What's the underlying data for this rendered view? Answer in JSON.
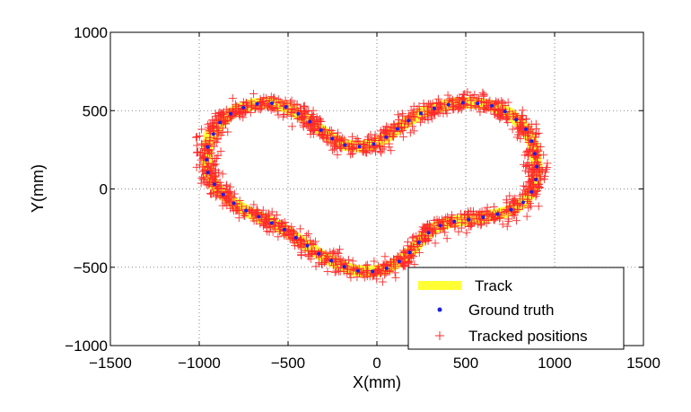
{
  "chart_data": {
    "type": "scatter",
    "title": "",
    "xlabel": "X(mm)",
    "ylabel": "Y(mm)",
    "xlim": [
      -1500,
      1500
    ],
    "ylim": [
      -1000,
      1000
    ],
    "xticks": [
      -1500,
      -1000,
      -500,
      0,
      500,
      1000,
      1500
    ],
    "yticks": [
      -1000,
      -500,
      0,
      500,
      1000
    ],
    "xtick_labels": [
      "−1500",
      "−1000",
      "−500",
      "0",
      "500",
      "1000",
      "1500"
    ],
    "ytick_labels": [
      "−1000",
      "−500",
      "0",
      "500",
      "1000"
    ],
    "grid": true,
    "grid_style": "dotted",
    "legend_position": "bottom-right",
    "series": [
      {
        "name": "Track",
        "style": "thick-line",
        "color": "#ffff33",
        "note": "closed heart-shaped loop",
        "x": [
          -920,
          -880,
          -800,
          -700,
          -600,
          -500,
          -400,
          -320,
          -250,
          -180,
          -100,
          -20,
          40,
          100,
          170,
          260,
          350,
          450,
          550,
          650,
          750,
          840,
          880,
          900,
          895,
          870,
          830,
          780,
          720,
          640,
          560,
          480,
          400,
          320,
          260,
          200,
          130,
          50,
          -40,
          -130,
          -220,
          -320,
          -420,
          -520,
          -620,
          -720,
          -820,
          -900,
          -950,
          -960,
          -940
        ],
        "y": [
          350,
          430,
          500,
          540,
          550,
          520,
          450,
          380,
          320,
          280,
          270,
          285,
          320,
          370,
          430,
          490,
          525,
          550,
          550,
          530,
          480,
          380,
          280,
          150,
          50,
          -20,
          -80,
          -120,
          -150,
          -170,
          -190,
          -200,
          -215,
          -250,
          -310,
          -390,
          -460,
          -510,
          -530,
          -520,
          -480,
          -420,
          -340,
          -260,
          -200,
          -150,
          -80,
          0,
          100,
          220,
          350
        ]
      },
      {
        "name": "Ground truth",
        "style": "dots",
        "color": "#1f1fe0",
        "note": "sparse points along the track"
      },
      {
        "name": "Tracked positions",
        "style": "plus-markers",
        "color": "#ff2a2a",
        "note": "noisy positions scattered around the track"
      }
    ]
  }
}
